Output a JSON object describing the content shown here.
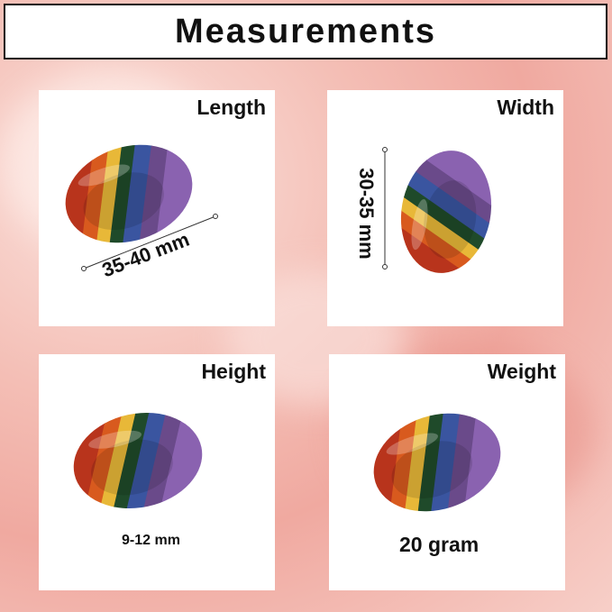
{
  "title": "Measurements",
  "panels": [
    {
      "label": "Length",
      "measurement": "35-40 mm"
    },
    {
      "label": "Width",
      "measurement": "30-35 mm"
    },
    {
      "label": "Height",
      "measurement": "9-12 mm"
    },
    {
      "label": "Weight",
      "measurement": "20 gram"
    }
  ],
  "stone_colors": [
    "#b8341c",
    "#d85a1e",
    "#e8b838",
    "#1f4a2a",
    "#3a55a0",
    "#6a4a8a",
    "#8a62b0"
  ]
}
